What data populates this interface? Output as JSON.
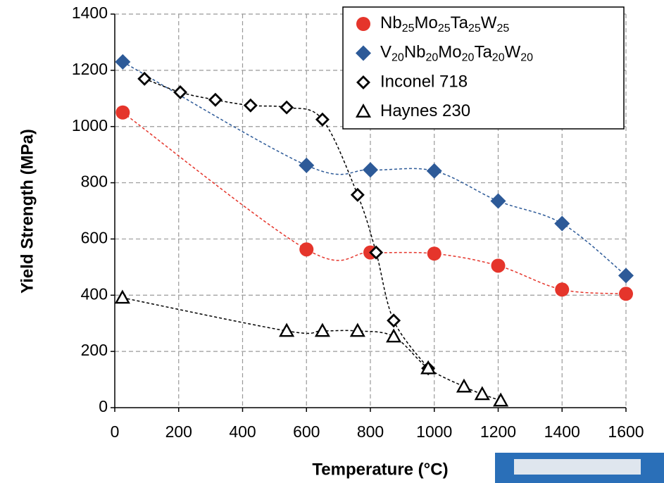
{
  "chart_data": {
    "type": "scatter",
    "x_label": "Temperature (°C)",
    "y_label": "Yield Strength (MPa)",
    "xlim": [
      0,
      1600
    ],
    "ylim": [
      0,
      1400
    ],
    "xticks": [
      0,
      200,
      400,
      600,
      800,
      1000,
      1200,
      1400,
      1600
    ],
    "yticks": [
      0,
      200,
      400,
      600,
      800,
      1000,
      1200,
      1400
    ],
    "grid": true,
    "legend": "upper right",
    "series": [
      {
        "name": "Nb25Mo25Ta25W25",
        "color": "#e5352b",
        "marker": "circle",
        "x": [
          25,
          600,
          800,
          1000,
          1200,
          1400,
          1600
        ],
        "values": [
          1050,
          563,
          552,
          548,
          505,
          420,
          405
        ]
      },
      {
        "name": "V20Nb20Mo20Ta20W20",
        "color": "#2d5a98",
        "marker": "diamond",
        "x": [
          25,
          600,
          800,
          1000,
          1200,
          1400,
          1600
        ],
        "values": [
          1230,
          862,
          846,
          842,
          735,
          655,
          470
        ]
      },
      {
        "name": "Inconel 718",
        "color": "#000000",
        "marker": "open-diamond",
        "x": [
          93,
          205,
          315,
          425,
          538,
          650,
          760,
          818,
          873,
          981
        ],
        "values": [
          1170,
          1122,
          1095,
          1075,
          1068,
          1025,
          757,
          552,
          310,
          140
        ]
      },
      {
        "name": "Haynes 230",
        "color": "#000000",
        "marker": "open-triangle",
        "x": [
          24,
          538,
          650,
          760,
          873,
          981,
          1093,
          1150,
          1208
        ],
        "values": [
          391,
          273,
          273,
          273,
          253,
          140,
          75,
          48,
          25
        ]
      }
    ]
  }
}
